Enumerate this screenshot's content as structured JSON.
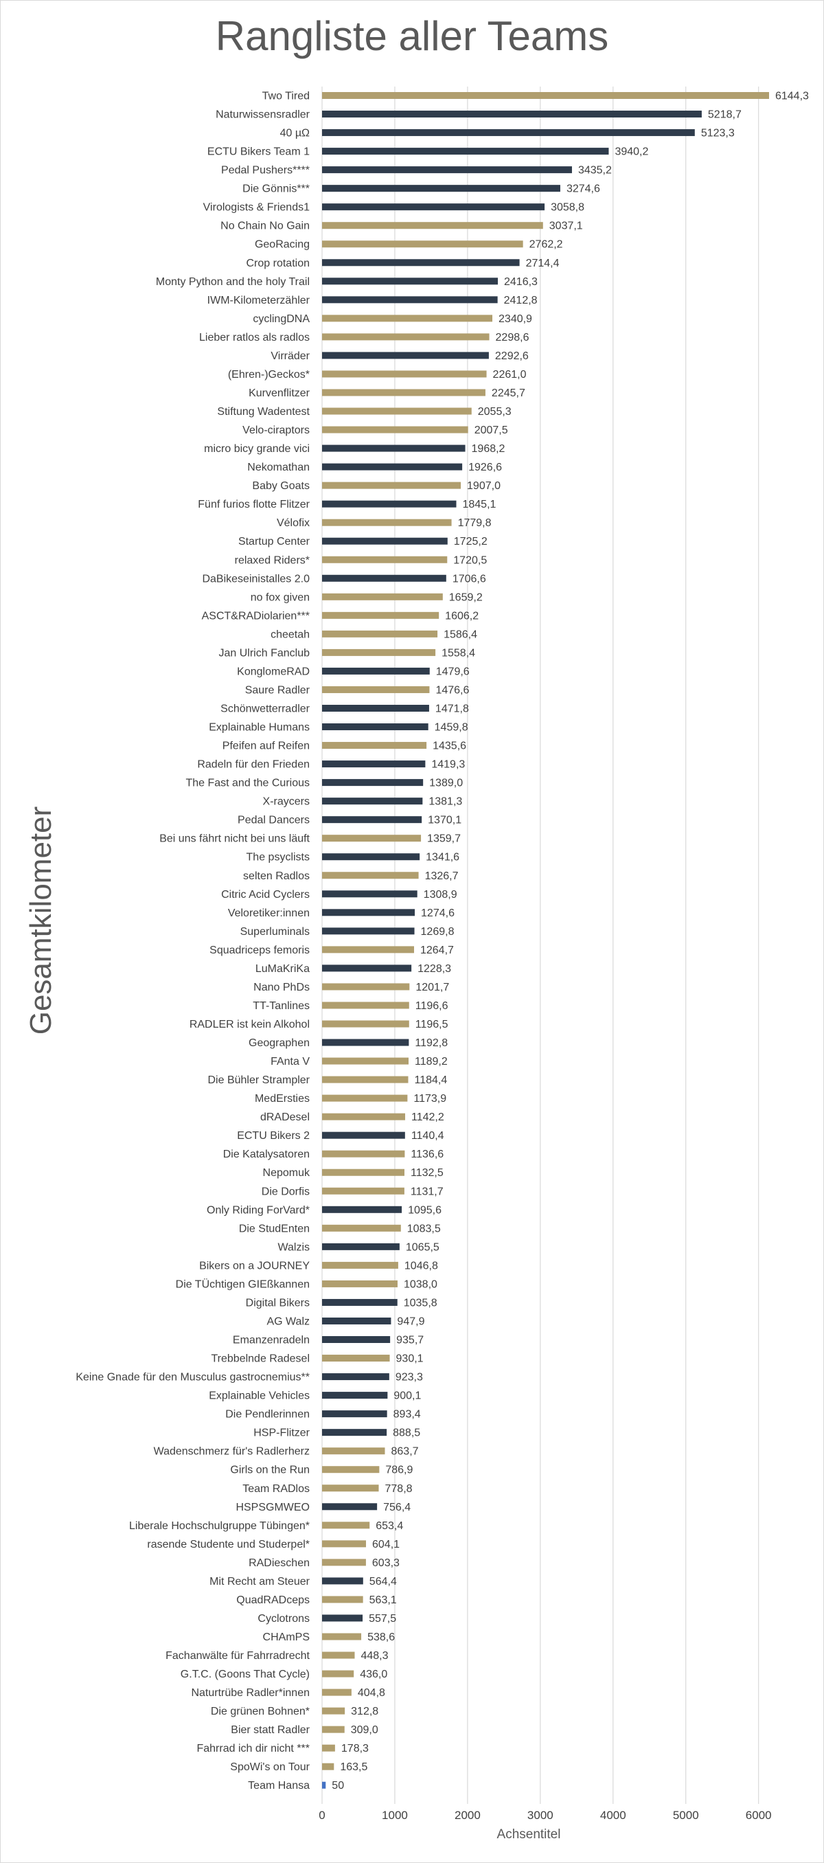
{
  "chart_data": {
    "type": "bar",
    "orientation": "horizontal",
    "title": "Rangliste aller Teams",
    "xlabel": "Achsentitel",
    "ylabel": "Gesamtkilometer",
    "xlim": [
      0,
      6500
    ],
    "xticks": [
      "0",
      "1000",
      "2000",
      "3000",
      "4000",
      "5000",
      "6000"
    ],
    "grid": true,
    "colors": {
      "tan": "#b09e6e",
      "navy": "#2f3c4c",
      "blue": "#4472c4",
      "grid": "#d9d9d9",
      "text": "#404040"
    },
    "categories": [
      "Two Tired",
      "Naturwissensradler",
      "40 µΩ",
      "ECTU Bikers Team 1",
      "Pedal Pushers****",
      "Die Gönnis***",
      "Virologists & Friends1",
      "No Chain No Gain",
      "GeoRacing",
      "Crop rotation",
      "Monty Python and the holy Trail",
      "IWM-Kilometerzähler",
      "cyclingDNA",
      "Lieber ratlos als radlos",
      "Virräder",
      "(Ehren-)Geckos*",
      "Kurvenflitzer",
      "Stiftung Wadentest",
      "Velo-ciraptors",
      "micro bicy grande vici",
      "Nekomathan",
      "Baby Goats",
      "Fünf furios flotte Flitzer",
      "Vélofix",
      "Startup Center",
      "relaxed Riders*",
      "DaBikeseinistalles 2.0",
      "no fox given",
      "ASCT&RADiolarien***",
      "cheetah",
      "Jan Ulrich Fanclub",
      "KonglomeRAD",
      "Saure Radler",
      "Schönwetterradler",
      "Explainable Humans",
      "Pfeifen auf Reifen",
      "Radeln für den Frieden",
      "The Fast and the Curious",
      "X-raycers",
      "Pedal Dancers",
      "Bei uns fährt nicht bei uns läuft",
      "The psyclists",
      "selten Radlos",
      "Citric Acid Cyclers",
      "Veloretiker:innen",
      "Superluminals",
      "Squadriceps femoris",
      "LuMaKriKa",
      "Nano PhDs",
      "TT-Tanlines",
      "RADLER ist kein Alkohol",
      "Geographen",
      "FAnta V",
      "Die Bühler Strampler",
      "MedErsties",
      "dRADesel",
      "ECTU Bikers 2",
      "Die Katalysatoren",
      "Nepomuk",
      "Die Dorfis",
      "Only Riding ForVard*",
      "Die StudEnten",
      "Walzis",
      "Bikers on a JOURNEY",
      "Die TÜchtigen GIEßkannen",
      "Digital Bikers",
      "AG Walz",
      "Emanzenradeln",
      "Trebbelnde Radesel",
      "Keine Gnade für den Musculus gastrocnemius**",
      "Explainable Vehicles",
      "Die Pendlerinnen",
      "HSP-Flitzer",
      "Wadenschmerz für's Radlerherz",
      "Girls on the Run",
      "Team RADlos",
      "HSPSGMWEO",
      "Liberale Hochschulgruppe Tübingen*",
      "rasende Studente und Studerpel*",
      "RADieschen",
      "Mit Recht am Steuer",
      "QuadRADceps",
      "Cyclotrons",
      "CHAmPS",
      "Fachanwälte für Fahrradrecht",
      "G.T.C. (Goons That Cycle)",
      "Naturtrübe Radler*innen",
      "Die grünen Bohnen*",
      "Bier statt Radler",
      "Fahrrad ich dir nicht ***",
      "SpoWi's on Tour",
      "Team Hansa"
    ],
    "values": [
      6144.3,
      5218.7,
      5123.3,
      3940.2,
      3435.2,
      3274.6,
      3058.8,
      3037.1,
      2762.2,
      2714.4,
      2416.3,
      2412.8,
      2340.9,
      2298.6,
      2292.6,
      2261.0,
      2245.7,
      2055.3,
      2007.5,
      1968.2,
      1926.6,
      1907.0,
      1845.1,
      1779.8,
      1725.2,
      1720.5,
      1706.6,
      1659.2,
      1606.2,
      1586.4,
      1558.4,
      1479.6,
      1476.6,
      1471.8,
      1459.8,
      1435.6,
      1419.3,
      1389.0,
      1381.3,
      1370.1,
      1359.7,
      1341.6,
      1326.7,
      1308.9,
      1274.6,
      1269.8,
      1264.7,
      1228.3,
      1201.7,
      1196.6,
      1196.5,
      1192.8,
      1189.2,
      1184.4,
      1173.9,
      1142.2,
      1140.4,
      1136.6,
      1132.5,
      1131.7,
      1095.6,
      1083.5,
      1065.5,
      1046.8,
      1038.0,
      1035.8,
      947.9,
      935.7,
      930.1,
      923.3,
      900.1,
      893.4,
      888.5,
      863.7,
      786.9,
      778.8,
      756.4,
      653.4,
      604.1,
      603.3,
      564.4,
      563.1,
      557.5,
      538.6,
      448.3,
      436.0,
      404.8,
      312.8,
      309.0,
      178.3,
      163.5,
      50
    ],
    "value_labels": [
      "6144,3",
      "5218,7",
      "5123,3",
      "3940,2",
      "3435,2",
      "3274,6",
      "3058,8",
      "3037,1",
      "2762,2",
      "2714,4",
      "2416,3",
      "2412,8",
      "2340,9",
      "2298,6",
      "2292,6",
      "2261,0",
      "2245,7",
      "2055,3",
      "2007,5",
      "1968,2",
      "1926,6",
      "1907,0",
      "1845,1",
      "1779,8",
      "1725,2",
      "1720,5",
      "1706,6",
      "1659,2",
      "1606,2",
      "1586,4",
      "1558,4",
      "1479,6",
      "1476,6",
      "1471,8",
      "1459,8",
      "1435,6",
      "1419,3",
      "1389,0",
      "1381,3",
      "1370,1",
      "1359,7",
      "1341,6",
      "1326,7",
      "1308,9",
      "1274,6",
      "1269,8",
      "1264,7",
      "1228,3",
      "1201,7",
      "1196,6",
      "1196,5",
      "1192,8",
      "1189,2",
      "1184,4",
      "1173,9",
      "1142,2",
      "1140,4",
      "1136,6",
      "1132,5",
      "1131,7",
      "1095,6",
      "1083,5",
      "1065,5",
      "1046,8",
      "1038,0",
      "1035,8",
      "947,9",
      "935,7",
      "930,1",
      "923,3",
      "900,1",
      "893,4",
      "888,5",
      "863,7",
      "786,9",
      "778,8",
      "756,4",
      "653,4",
      "604,1",
      "603,3",
      "564,4",
      "563,1",
      "557,5",
      "538,6",
      "448,3",
      "436,0",
      "404,8",
      "312,8",
      "309,0",
      "178,3",
      "163,5",
      "50"
    ],
    "bar_colors": [
      "tan",
      "navy",
      "navy",
      "navy",
      "navy",
      "navy",
      "navy",
      "tan",
      "tan",
      "navy",
      "navy",
      "navy",
      "tan",
      "tan",
      "navy",
      "tan",
      "tan",
      "tan",
      "tan",
      "navy",
      "navy",
      "tan",
      "navy",
      "tan",
      "navy",
      "tan",
      "navy",
      "tan",
      "tan",
      "tan",
      "tan",
      "navy",
      "tan",
      "navy",
      "navy",
      "tan",
      "navy",
      "navy",
      "navy",
      "navy",
      "tan",
      "navy",
      "tan",
      "navy",
      "navy",
      "navy",
      "tan",
      "navy",
      "tan",
      "tan",
      "tan",
      "navy",
      "tan",
      "tan",
      "tan",
      "tan",
      "navy",
      "tan",
      "tan",
      "tan",
      "navy",
      "tan",
      "navy",
      "tan",
      "tan",
      "navy",
      "navy",
      "navy",
      "tan",
      "navy",
      "navy",
      "navy",
      "navy",
      "tan",
      "tan",
      "tan",
      "navy",
      "tan",
      "tan",
      "tan",
      "navy",
      "tan",
      "navy",
      "tan",
      "tan",
      "tan",
      "tan",
      "tan",
      "tan",
      "tan",
      "tan",
      "blue"
    ]
  }
}
